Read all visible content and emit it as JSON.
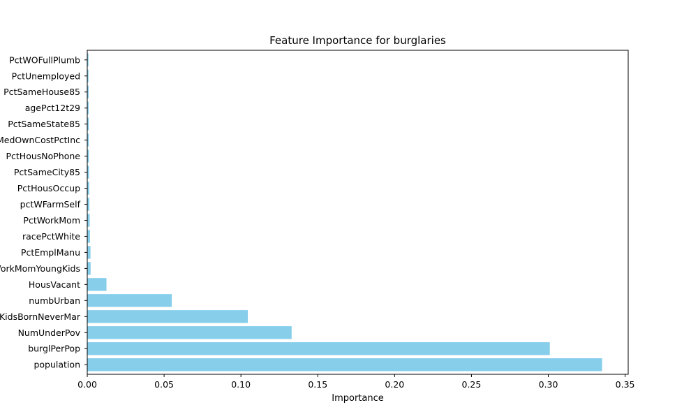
{
  "chart_data": {
    "type": "bar",
    "orientation": "horizontal",
    "title": "Feature Importance for burglaries",
    "xlabel": "Importance",
    "ylabel": "",
    "xlim": [
      0,
      0.352
    ],
    "xticks": [
      0.0,
      0.05,
      0.1,
      0.15,
      0.2,
      0.25,
      0.3,
      0.35
    ],
    "xtick_labels": [
      "0.00",
      "0.05",
      "0.10",
      "0.15",
      "0.20",
      "0.25",
      "0.30",
      "0.35"
    ],
    "grid": false,
    "bar_color": "#87ceeb",
    "categories": [
      "population",
      "burglPerPop",
      "NumUnderPov",
      "NumKidsBornNeverMar",
      "numbUrban",
      "HousVacant",
      "PctWorkMomYoungKids",
      "PctEmplManu",
      "racePctWhite",
      "PctWorkMom",
      "pctWFarmSelf",
      "PctHousOccup",
      "PctSameCity85",
      "PctHousNoPhone",
      "MedOwnCostPctInc",
      "PctSameState85",
      "agePct12t29",
      "PctSameHouse85",
      "PctUnemployed",
      "PctWOFullPlumb"
    ],
    "values": [
      0.335,
      0.301,
      0.133,
      0.1045,
      0.055,
      0.0125,
      0.0022,
      0.0021,
      0.0018,
      0.0016,
      0.0014,
      0.0013,
      0.0012,
      0.0011,
      0.001,
      0.001,
      0.0009,
      0.0009,
      0.0008,
      0.0008
    ]
  }
}
